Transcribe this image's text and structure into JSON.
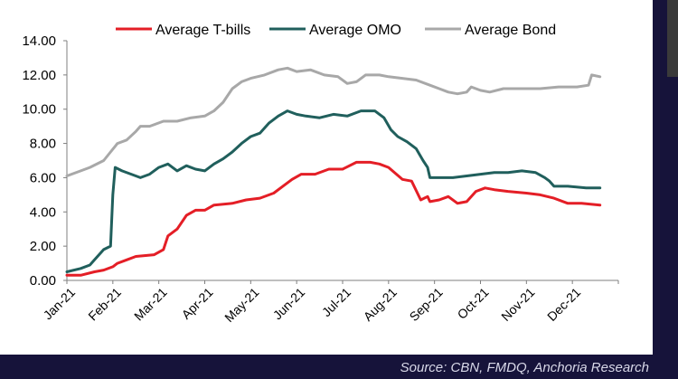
{
  "source": "Source: CBN, FMDQ, Anchoria Research",
  "chart_data": {
    "type": "line",
    "title": "",
    "xlabel": "",
    "ylabel": "",
    "ylim": [
      0,
      14
    ],
    "yticks": [
      "0.00",
      "2.00",
      "4.00",
      "6.00",
      "8.00",
      "10.00",
      "12.00",
      "14.00"
    ],
    "categories": [
      "Jan-21",
      "Feb-21",
      "Mar-21",
      "Apr-21",
      "May-21",
      "Jun-21",
      "Jul-21",
      "Aug-21",
      "Sep-21",
      "Oct-21",
      "Nov-21",
      "Dec-21"
    ],
    "legend_position": "top",
    "grid": false,
    "series": [
      {
        "name": "Average T-bills",
        "color": "#e41e26",
        "points": [
          [
            0.0,
            0.3
          ],
          [
            0.3,
            0.3
          ],
          [
            0.6,
            0.5
          ],
          [
            0.8,
            0.6
          ],
          [
            1.0,
            0.8
          ],
          [
            1.1,
            1.0
          ],
          [
            1.3,
            1.2
          ],
          [
            1.5,
            1.4
          ],
          [
            1.9,
            1.5
          ],
          [
            2.1,
            1.8
          ],
          [
            2.2,
            2.6
          ],
          [
            2.4,
            3.0
          ],
          [
            2.6,
            3.8
          ],
          [
            2.8,
            4.1
          ],
          [
            3.0,
            4.1
          ],
          [
            3.2,
            4.4
          ],
          [
            3.6,
            4.5
          ],
          [
            3.9,
            4.7
          ],
          [
            4.2,
            4.8
          ],
          [
            4.5,
            5.1
          ],
          [
            4.7,
            5.5
          ],
          [
            4.9,
            5.9
          ],
          [
            5.1,
            6.2
          ],
          [
            5.4,
            6.2
          ],
          [
            5.7,
            6.5
          ],
          [
            6.0,
            6.5
          ],
          [
            6.3,
            6.9
          ],
          [
            6.6,
            6.9
          ],
          [
            6.8,
            6.8
          ],
          [
            7.0,
            6.6
          ],
          [
            7.3,
            5.9
          ],
          [
            7.5,
            5.8
          ],
          [
            7.7,
            4.7
          ],
          [
            7.85,
            4.9
          ],
          [
            7.9,
            4.6
          ],
          [
            8.1,
            4.7
          ],
          [
            8.3,
            4.9
          ],
          [
            8.5,
            4.5
          ],
          [
            8.7,
            4.6
          ],
          [
            8.9,
            5.2
          ],
          [
            9.1,
            5.4
          ],
          [
            9.3,
            5.3
          ],
          [
            9.6,
            5.2
          ],
          [
            10.0,
            5.1
          ],
          [
            10.3,
            5.0
          ],
          [
            10.6,
            4.8
          ],
          [
            10.9,
            4.5
          ],
          [
            11.2,
            4.5
          ],
          [
            11.6,
            4.4
          ]
        ]
      },
      {
        "name": "Average OMO",
        "color": "#205f5c",
        "points": [
          [
            0.0,
            0.5
          ],
          [
            0.3,
            0.7
          ],
          [
            0.5,
            0.9
          ],
          [
            0.6,
            1.2
          ],
          [
            0.8,
            1.8
          ],
          [
            0.95,
            2.0
          ],
          [
            1.0,
            5.0
          ],
          [
            1.05,
            6.6
          ],
          [
            1.2,
            6.4
          ],
          [
            1.4,
            6.2
          ],
          [
            1.6,
            6.0
          ],
          [
            1.8,
            6.2
          ],
          [
            2.0,
            6.6
          ],
          [
            2.2,
            6.8
          ],
          [
            2.4,
            6.4
          ],
          [
            2.6,
            6.7
          ],
          [
            2.8,
            6.5
          ],
          [
            3.0,
            6.4
          ],
          [
            3.2,
            6.8
          ],
          [
            3.4,
            7.1
          ],
          [
            3.6,
            7.5
          ],
          [
            3.8,
            8.0
          ],
          [
            4.0,
            8.4
          ],
          [
            4.2,
            8.6
          ],
          [
            4.4,
            9.2
          ],
          [
            4.6,
            9.6
          ],
          [
            4.8,
            9.9
          ],
          [
            5.0,
            9.7
          ],
          [
            5.2,
            9.6
          ],
          [
            5.5,
            9.5
          ],
          [
            5.8,
            9.7
          ],
          [
            6.1,
            9.6
          ],
          [
            6.4,
            9.9
          ],
          [
            6.7,
            9.9
          ],
          [
            6.9,
            9.5
          ],
          [
            7.05,
            8.8
          ],
          [
            7.2,
            8.4
          ],
          [
            7.4,
            8.1
          ],
          [
            7.6,
            7.7
          ],
          [
            7.75,
            7.0
          ],
          [
            7.85,
            6.6
          ],
          [
            7.9,
            6.0
          ],
          [
            8.1,
            6.0
          ],
          [
            8.4,
            6.0
          ],
          [
            8.7,
            6.1
          ],
          [
            9.0,
            6.2
          ],
          [
            9.3,
            6.3
          ],
          [
            9.6,
            6.3
          ],
          [
            9.9,
            6.4
          ],
          [
            10.2,
            6.3
          ],
          [
            10.4,
            6.0
          ],
          [
            10.5,
            5.8
          ],
          [
            10.6,
            5.5
          ],
          [
            10.9,
            5.5
          ],
          [
            11.3,
            5.4
          ],
          [
            11.6,
            5.4
          ]
        ]
      },
      {
        "name": "Average Bond",
        "color": "#a8a8a8",
        "points": [
          [
            0.0,
            6.1
          ],
          [
            0.3,
            6.4
          ],
          [
            0.5,
            6.6
          ],
          [
            0.8,
            7.0
          ],
          [
            0.95,
            7.5
          ],
          [
            1.1,
            8.0
          ],
          [
            1.3,
            8.2
          ],
          [
            1.5,
            8.7
          ],
          [
            1.6,
            9.0
          ],
          [
            1.8,
            9.0
          ],
          [
            2.1,
            9.3
          ],
          [
            2.4,
            9.3
          ],
          [
            2.7,
            9.5
          ],
          [
            3.0,
            9.6
          ],
          [
            3.2,
            9.9
          ],
          [
            3.4,
            10.4
          ],
          [
            3.6,
            11.2
          ],
          [
            3.8,
            11.6
          ],
          [
            4.0,
            11.8
          ],
          [
            4.3,
            12.0
          ],
          [
            4.6,
            12.3
          ],
          [
            4.8,
            12.4
          ],
          [
            5.0,
            12.2
          ],
          [
            5.3,
            12.3
          ],
          [
            5.6,
            12.0
          ],
          [
            5.9,
            11.9
          ],
          [
            6.1,
            11.5
          ],
          [
            6.3,
            11.6
          ],
          [
            6.5,
            12.0
          ],
          [
            6.8,
            12.0
          ],
          [
            7.0,
            11.9
          ],
          [
            7.3,
            11.8
          ],
          [
            7.6,
            11.7
          ],
          [
            7.9,
            11.4
          ],
          [
            8.1,
            11.2
          ],
          [
            8.3,
            11.0
          ],
          [
            8.5,
            10.9
          ],
          [
            8.7,
            11.0
          ],
          [
            8.8,
            11.3
          ],
          [
            9.0,
            11.1
          ],
          [
            9.2,
            11.0
          ],
          [
            9.5,
            11.2
          ],
          [
            9.9,
            11.2
          ],
          [
            10.3,
            11.2
          ],
          [
            10.7,
            11.3
          ],
          [
            11.1,
            11.3
          ],
          [
            11.35,
            11.4
          ],
          [
            11.42,
            12.0
          ],
          [
            11.6,
            11.9
          ]
        ]
      }
    ]
  }
}
